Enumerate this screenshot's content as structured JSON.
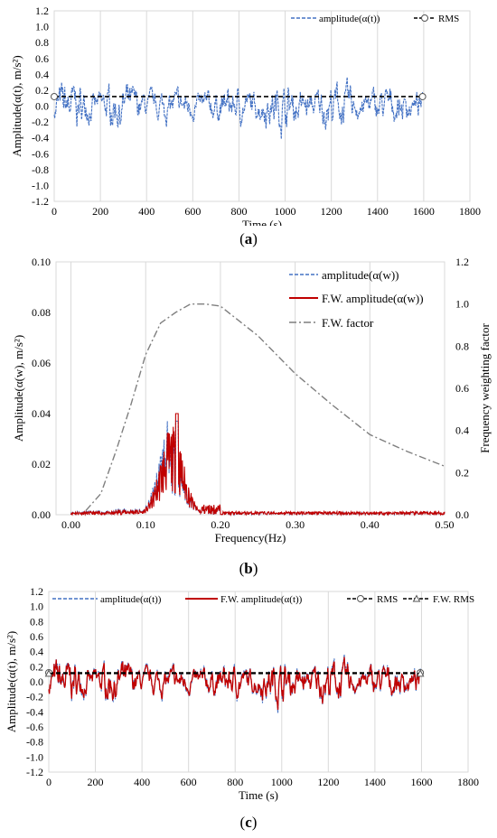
{
  "captions": {
    "a": "a",
    "b": "b",
    "c": "c"
  },
  "chart_data": [
    {
      "id": "a",
      "type": "line",
      "xlabel": "Time (s)",
      "ylabel": "Amplitude(α(t), m/s²)",
      "xlim": [
        0,
        1800
      ],
      "ylim": [
        -1.2,
        1.2
      ],
      "xticks": [
        0,
        200,
        400,
        600,
        800,
        1000,
        1200,
        1400,
        1600,
        1800
      ],
      "yticks": [
        -1.2,
        -1.0,
        -0.8,
        -0.6,
        -0.4,
        -0.2,
        0.0,
        0.2,
        0.4,
        0.6,
        0.8,
        1.0,
        1.2
      ],
      "grid": "vertical",
      "legend_position": "top-right",
      "series": [
        {
          "name": "amplitude(α(t))",
          "color": "#4472C4",
          "style": "dashed",
          "x_range": [
            0,
            1595
          ],
          "envelope": [
            -0.43,
            0.4
          ]
        },
        {
          "name": "RMS",
          "color": "#000000",
          "style": "dashed",
          "marker": "circle",
          "x": [
            0,
            1595
          ],
          "y": [
            0.12,
            0.12
          ]
        }
      ]
    },
    {
      "id": "b",
      "type": "line",
      "xlabel": "Frequency(Hz)",
      "ylabel": "Amplitude(α(w), m/s²)",
      "y2label": "Frequency weighting factor",
      "xlim": [
        -0.02,
        0.5
      ],
      "ylim": [
        0,
        0.1
      ],
      "y2lim": [
        0,
        1.2
      ],
      "xticks": [
        0.0,
        0.1,
        0.2,
        0.3,
        0.4,
        0.5
      ],
      "xtick_labels": [
        "0.00",
        "0.10",
        "0.20",
        "0.30",
        "0.40",
        "0.50"
      ],
      "yticks": [
        0,
        0.02,
        0.04,
        0.06,
        0.08,
        0.1
      ],
      "ytick_labels": [
        "0.00",
        "0.02",
        "0.04",
        "0.06",
        "0.08",
        "0.10"
      ],
      "y2ticks": [
        0,
        0.2,
        0.4,
        0.6,
        0.8,
        1.0,
        1.2
      ],
      "y2tick_labels": [
        "0.0",
        "0.2",
        "0.4",
        "0.6",
        "0.8",
        "1.0",
        "1.2"
      ],
      "grid": "vertical",
      "legend_position": "top-right",
      "series": [
        {
          "name": "amplitude(α(w))",
          "color": "#4472C4",
          "style": "dashed",
          "peak": 0.037
        },
        {
          "name": "F.W. amplitude(α(w))",
          "color": "#C00000",
          "style": "solid",
          "peak": 0.04
        },
        {
          "name": "F.W. factor",
          "color": "#7F7F7F",
          "style": "dash-dot",
          "axis": "y2",
          "x": [
            0.02,
            0.04,
            0.06,
            0.08,
            0.1,
            0.12,
            0.14,
            0.16,
            0.18,
            0.2,
            0.25,
            0.3,
            0.35,
            0.4,
            0.45,
            0.5
          ],
          "y": [
            0.02,
            0.1,
            0.3,
            0.52,
            0.76,
            0.91,
            0.96,
            1.0,
            1.0,
            0.99,
            0.85,
            0.67,
            0.52,
            0.38,
            0.3,
            0.23
          ]
        }
      ]
    },
    {
      "id": "c",
      "type": "line",
      "xlabel": "Time (s)",
      "ylabel": "Amplitude(α(t), m/s²)",
      "xlim": [
        0,
        1800
      ],
      "ylim": [
        -1.2,
        1.2
      ],
      "xticks": [
        0,
        200,
        400,
        600,
        800,
        1000,
        1200,
        1400,
        1600,
        1800
      ],
      "yticks": [
        -1.2,
        -1.0,
        -0.8,
        -0.6,
        -0.4,
        -0.2,
        0.0,
        0.2,
        0.4,
        0.6,
        0.8,
        1.0,
        1.2
      ],
      "grid": "vertical",
      "legend_position": "top",
      "series": [
        {
          "name": "amplitude(α(t))",
          "color": "#4472C4",
          "style": "dashed",
          "x_range": [
            0,
            1595
          ],
          "envelope": [
            -0.43,
            0.4
          ]
        },
        {
          "name": "F.W. amplitude(α(t))",
          "color": "#C00000",
          "style": "solid",
          "x_range": [
            0,
            1595
          ],
          "envelope": [
            -0.4,
            0.38
          ]
        },
        {
          "name": "RMS",
          "color": "#000000",
          "style": "dashed",
          "marker": "circle",
          "x": [
            0,
            1595
          ],
          "y": [
            0.12,
            0.12
          ]
        },
        {
          "name": "F.W. RMS",
          "color": "#000000",
          "style": "dashed",
          "marker": "triangle",
          "x": [
            0,
            1595
          ],
          "y": [
            0.11,
            0.11
          ]
        }
      ]
    }
  ]
}
